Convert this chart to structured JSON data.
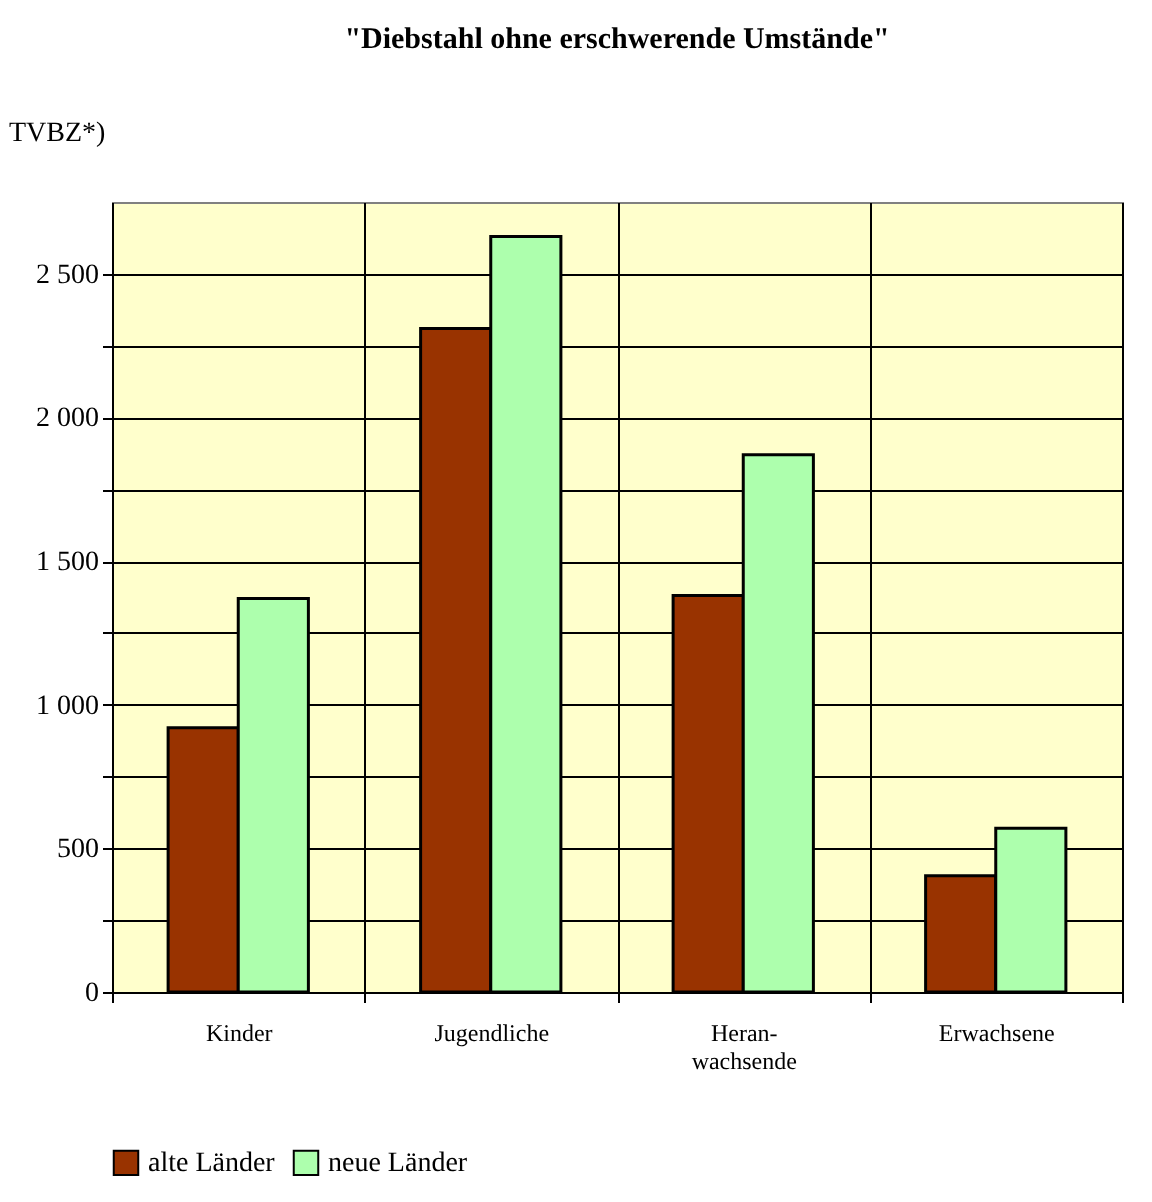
{
  "chart_data": {
    "type": "bar",
    "title": "\"Diebstahl ohne erschwerende Umstände\"",
    "ylabel": "TVBZ*)",
    "categories": [
      "Kinder",
      "Jugendliche",
      "Heran-\nwachsende",
      "Erwachsene"
    ],
    "series": [
      {
        "name": "alte Länder",
        "color": "#993300",
        "values": [
          920,
          2310,
          1380,
          405
        ]
      },
      {
        "name": "neue Länder",
        "color": "#adffad",
        "values": [
          1370,
          2630,
          1870,
          570
        ]
      }
    ],
    "ylim": [
      0,
      2750
    ],
    "yticks": [
      {
        "value": 0,
        "label": "0"
      },
      {
        "value": 250,
        "label": null
      },
      {
        "value": 500,
        "label": "500"
      },
      {
        "value": 750,
        "label": null
      },
      {
        "value": 1000,
        "label": "1 000"
      },
      {
        "value": 1250,
        "label": null
      },
      {
        "value": 1500,
        "label": "1 500"
      },
      {
        "value": 1750,
        "label": null
      },
      {
        "value": 2000,
        "label": "2 000"
      },
      {
        "value": 2250,
        "label": null
      },
      {
        "value": 2500,
        "label": "2 500"
      }
    ],
    "grid": true,
    "legend": "bottom"
  }
}
